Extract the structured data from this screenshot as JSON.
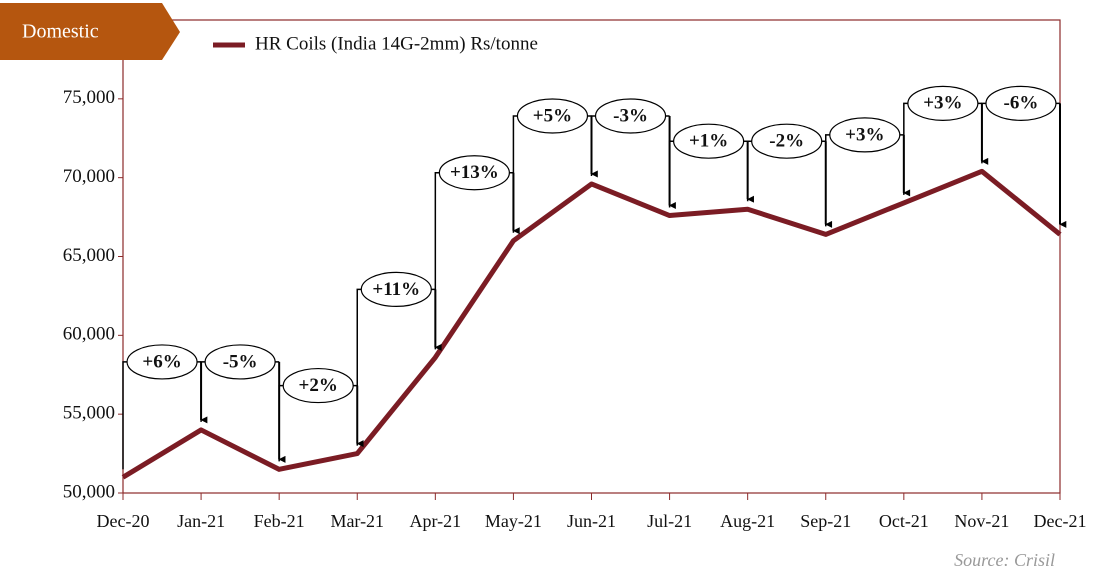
{
  "chart_data": {
    "type": "line",
    "badge": "Domestic",
    "source": "Source: Crisil",
    "categories": [
      "Dec-20",
      "Jan-21",
      "Feb-21",
      "Mar-21",
      "Apr-21",
      "May-21",
      "Jun-21",
      "Jul-21",
      "Aug-21",
      "Sep-21",
      "Oct-21",
      "Nov-21",
      "Dec-21"
    ],
    "series": [
      {
        "name": "HR Coils (India 14G-2mm) Rs/tonne",
        "color": "#7b1c24",
        "values": [
          51000,
          54000,
          51500,
          52500,
          58600,
          66000,
          69600,
          67600,
          68000,
          66400,
          68400,
          70400,
          66400
        ],
        "change_labels": [
          null,
          "+6%",
          "-5%",
          "+2%",
          "+11%",
          "+13%",
          "+5%",
          "-3%",
          "+1%",
          "-2%",
          "+3%",
          "+3%",
          "-6%"
        ]
      }
    ],
    "ylim": [
      50000,
      80000
    ],
    "yticks": [
      {
        "value": 50000,
        "label": "50,000"
      },
      {
        "value": 55000,
        "label": "55,000"
      },
      {
        "value": 60000,
        "label": "60,000"
      },
      {
        "value": 65000,
        "label": "65,000"
      },
      {
        "value": 70000,
        "label": "70,000"
      },
      {
        "value": 75000,
        "label": "75,000"
      }
    ],
    "grid": false
  }
}
